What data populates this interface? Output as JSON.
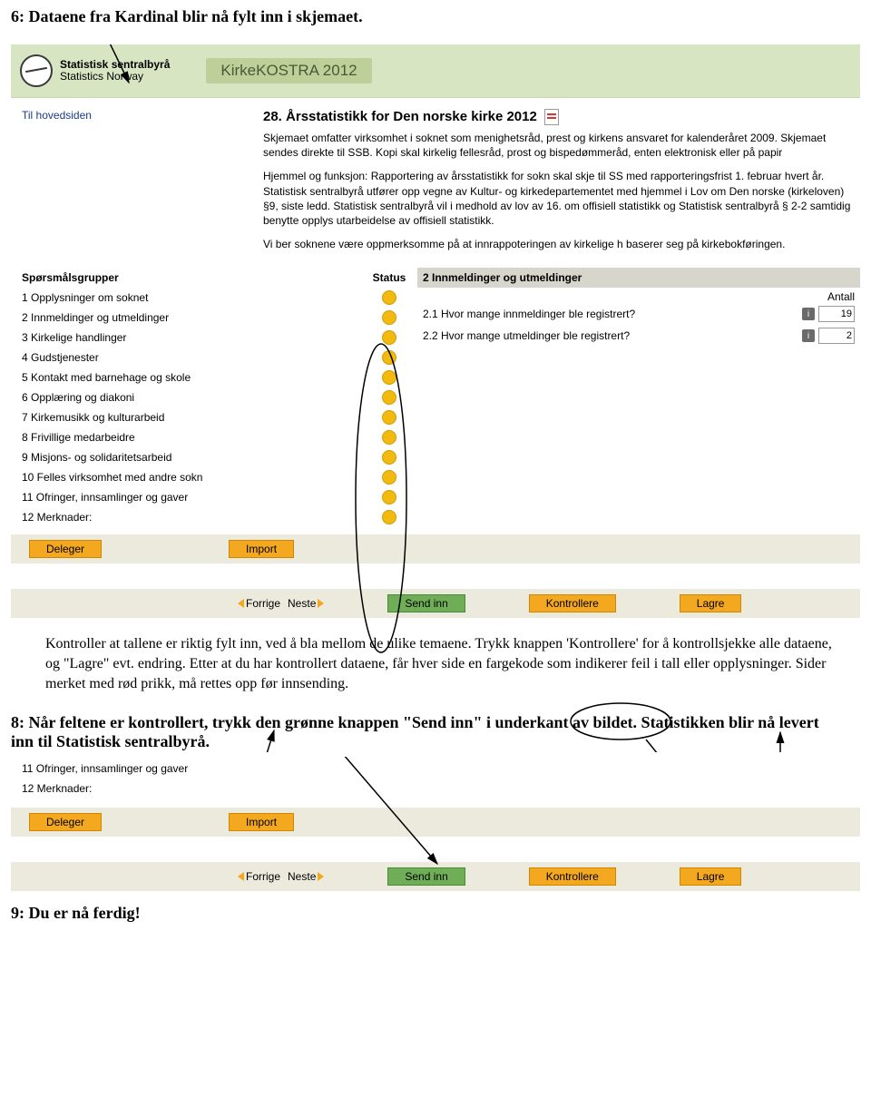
{
  "doc": {
    "heading6": "6: Dataene fra Kardinal blir nå fylt inn i skjemaet.",
    "para1": "Kontroller at tallene er riktig fylt inn, ved å bla mellom de ulike temaene. Trykk knappen 'Kontrollere' for å kontrollsjekke alle dataene, og \"Lagre\" evt. endring. Etter at du har kontrollert dataene, får hver side en fargekode som indikerer feil i tall eller opplysninger. Sider merket med rød prikk, må rettes opp før innsending.",
    "heading8": "8: Når feltene er kontrollert, trykk den grønne knappen \"Send inn\" i underkant av bildet. Statistikken blir nå levert inn til Statistisk sentralbyrå.",
    "heading9": "9: Du er nå ferdig!"
  },
  "header": {
    "org1": "Statistisk sentralbyrå",
    "org2": "Statistics Norway",
    "app_title": "KirkeKOSTRA 2012"
  },
  "sidebar": {
    "home_link": "Til hovedsiden",
    "groups_heading": "Spørsmålsgrupper",
    "status_heading": "Status",
    "items": [
      "1 Opplysninger om soknet",
      "2 Innmeldinger og utmeldinger",
      "3 Kirkelige handlinger",
      "4 Gudstjenester",
      "5 Kontakt med barnehage og skole",
      "6 Opplæring og diakoni",
      "7 Kirkemusikk og kulturarbeid",
      "8 Frivillige medarbeidre",
      "9 Misjons- og solidaritetsarbeid",
      "10 Felles virksomhet med andre sokn",
      "11 Ofringer, innsamlinger og gaver",
      "12 Merknader:"
    ]
  },
  "main": {
    "title": "28. Årsstatistikk for Den norske kirke 2012",
    "p1": "Skjemaet omfatter virksomhet i soknet som menighetsråd, prest og kirkens ansvaret for kalenderåret 2009. Skjemaet sendes direkte til SSB. Kopi skal kirkelig fellesråd, prost og bispedømmeråd, enten elektronisk eller på papir",
    "p2": "Hjemmel og funksjon: Rapportering av årsstatistikk for sokn skal skje til SS med rapporteringsfrist 1. februar hvert år. Statistisk sentralbyrå utfører opp vegne av Kultur- og kirkedepartementet med hjemmel i Lov om Den norske (kirkeloven) §9, siste ledd. Statistisk sentralbyrå vil i medhold av lov av 16. om offisiell statistikk og Statistisk sentralbyrå § 2-2 samtidig benytte opplys utarbeidelse av offisiell statistikk.",
    "p3": "Vi ber soknene være oppmerksomme på at innrappoteringen av kirkelige h baserer seg på kirkebokføringen.",
    "section_title": "2 Innmeldinger og utmeldinger",
    "antall_label": "Antall",
    "q1": "2.1 Hvor mange innmeldinger ble registrert?",
    "q1_val": "19",
    "q2": "2.2 Hvor mange utmeldinger ble registrert?",
    "q2_val": "2"
  },
  "buttons": {
    "deleger": "Deleger",
    "import": "Import",
    "forrige": "Forrige",
    "neste": "Neste",
    "send_inn": "Send inn",
    "kontrollere": "Kontrollere",
    "lagre": "Lagre"
  },
  "shot2": {
    "items": [
      "11 Ofringer, innsamlinger og gaver",
      "12 Merknader:"
    ]
  },
  "colors": {
    "header_bg": "#d8e5c2",
    "status_dot": "#f2b90f",
    "btn_orange": "#f4a820",
    "btn_green": "#6fae56",
    "bar_bg": "#eceadd",
    "section_bg": "#d6d6cc"
  }
}
